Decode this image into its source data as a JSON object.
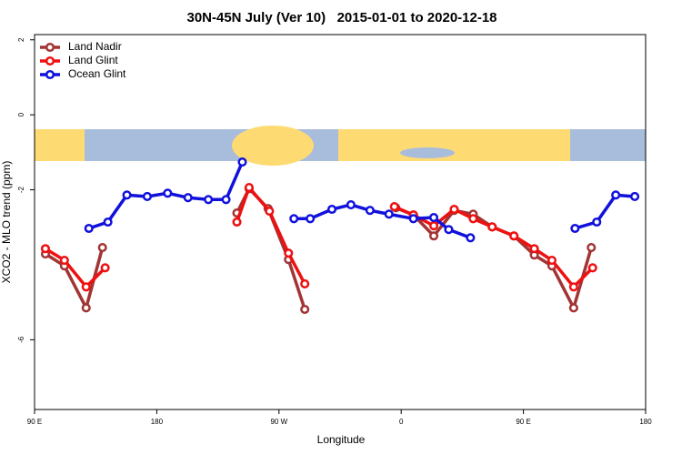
{
  "chart_data": {
    "type": "line",
    "title": "30N-45N July (Ver 10)   2015-01-01 to 2020-12-18",
    "x_label": "Longitude",
    "y_label": "XCO2 - MLO trend (ppm)",
    "xlim": [
      90,
      540
    ],
    "xticks": [
      {
        "value": 90,
        "label": "90 E"
      },
      180,
      {
        "value": 270,
        "label": "90 W"
      },
      {
        "value": 360,
        "label": "0"
      },
      {
        "value": 450,
        "label": "90 E"
      },
      {
        "value": 540,
        "label": "180"
      }
    ],
    "ylim": [
      -7.86,
      2.14
    ],
    "yticks": [
      -6,
      -2,
      0,
      2
    ],
    "legend": "topleft",
    "series": [
      {
        "name": "Land Nadir",
        "color": "#a23434",
        "x": [
          98,
          112,
          128,
          140,
          null,
          239,
          248,
          262,
          277,
          289,
          null,
          356,
          369,
          384,
          399,
          413,
          427,
          443,
          458,
          471,
          487,
          500
        ],
        "values": [
          -3.71,
          -4.03,
          -5.15,
          -3.54,
          null,
          -2.62,
          -1.97,
          -2.5,
          -3.86,
          -5.19,
          null,
          -2.48,
          -2.67,
          -3.23,
          -2.55,
          -2.65,
          -2.99,
          -3.23,
          -3.74,
          -4.03,
          -5.15,
          -3.54
        ]
      },
      {
        "name": "Land Glint",
        "color": "#ee1111",
        "x": [
          98,
          112,
          128,
          142,
          null,
          239,
          248,
          263,
          277,
          289,
          null,
          355,
          369,
          384,
          399,
          413,
          427,
          443,
          458,
          471,
          487,
          501
        ],
        "values": [
          -3.57,
          -3.88,
          -4.59,
          -4.08,
          null,
          -2.86,
          -1.94,
          -2.57,
          -3.69,
          -4.51,
          null,
          -2.45,
          -2.67,
          -2.96,
          -2.52,
          -2.77,
          -2.99,
          -3.23,
          -3.57,
          -3.88,
          -4.59,
          -4.08
        ]
      },
      {
        "name": "Ocean Glint",
        "color": "#1111dd",
        "x": [
          130,
          144,
          158,
          173,
          188,
          203,
          218,
          231,
          243,
          null,
          281,
          293,
          309,
          323,
          337,
          351,
          369,
          384,
          395,
          411,
          null,
          488,
          504,
          518,
          532
        ],
        "values": [
          -3.03,
          -2.86,
          -2.14,
          -2.18,
          -2.09,
          -2.21,
          -2.26,
          -2.26,
          -1.26,
          null,
          -2.77,
          -2.77,
          -2.52,
          -2.4,
          -2.55,
          -2.65,
          -2.77,
          -2.74,
          -3.06,
          -3.28,
          null,
          -3.03,
          -2.86,
          -2.14,
          -2.18
        ]
      }
    ]
  }
}
